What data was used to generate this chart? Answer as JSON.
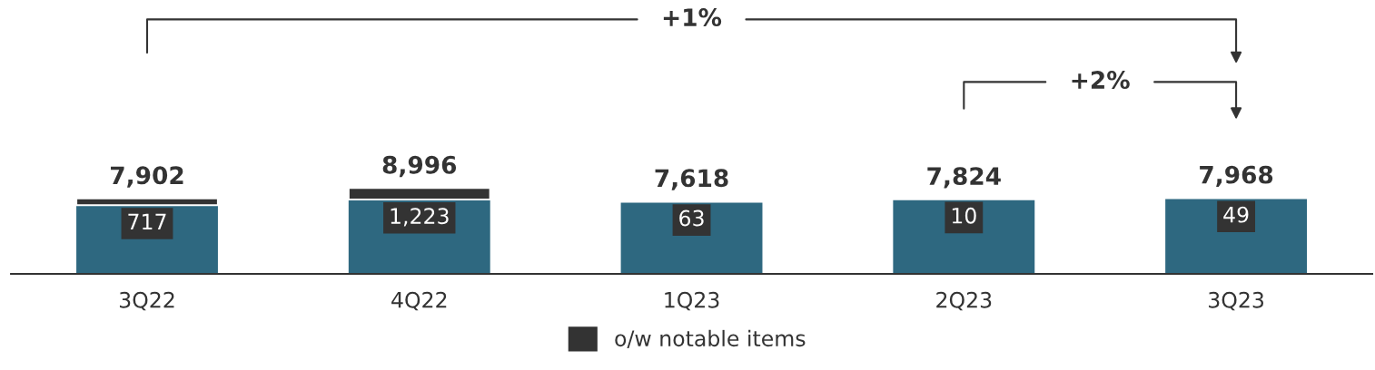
{
  "chart_data": {
    "type": "bar",
    "stacked": true,
    "tick_labels": "x",
    "grid": false,
    "categories": [
      "3Q22",
      "4Q22",
      "1Q23",
      "2Q23",
      "3Q23"
    ],
    "series": [
      {
        "color": "#2e6880",
        "values": [
          7185,
          7773,
          7555,
          7814,
          7919
        ]
      },
      {
        "name": "o/w notable items",
        "color": "#333333",
        "values": [
          717,
          1223,
          63,
          10,
          49
        ],
        "value_labels": [
          "717",
          "1,223",
          "63",
          "10",
          "49"
        ]
      }
    ],
    "totals": [
      "7,902",
      "8,996",
      "7,618",
      "7,824",
      "7,968"
    ],
    "legend": "bottom",
    "annotations": [
      "+1%",
      "+2%"
    ]
  }
}
